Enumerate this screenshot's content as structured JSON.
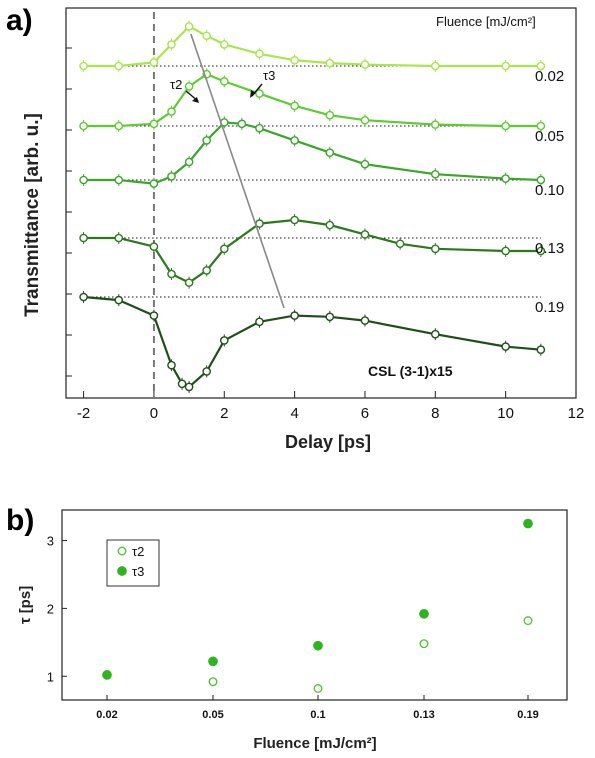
{
  "chart_data": [
    {
      "panel": "a)",
      "type": "line",
      "xlabel": "Delay [ps]",
      "ylabel": "Transmittance [arb. u.]",
      "xlim": [
        -2.5,
        12
      ],
      "xticks": [
        "-2",
        "0",
        "2",
        "4",
        "6",
        "8",
        "10",
        "12"
      ],
      "legend_title": "Fluence [mJ/cm²]",
      "annotation": "CSL (3-1)x15",
      "tau_labels": [
        "τ2",
        "τ3"
      ],
      "series": [
        {
          "name": "0.02",
          "color": "#a8e64a",
          "x": [
            -2,
            -1,
            0,
            0.5,
            1,
            1.5,
            2,
            3,
            4,
            5,
            6,
            8,
            10,
            11
          ],
          "y": [
            0.0,
            0.0,
            0.05,
            0.3,
            0.55,
            0.42,
            0.3,
            0.17,
            0.08,
            0.04,
            0.02,
            0.0,
            0.0,
            0.0
          ]
        },
        {
          "name": "0.05",
          "color": "#5ecb32",
          "x": [
            -2,
            -1,
            0,
            0.5,
            1,
            1.5,
            2,
            3,
            4,
            5,
            6,
            8,
            10,
            11
          ],
          "y": [
            0.0,
            0.0,
            0.03,
            0.2,
            0.55,
            0.72,
            0.62,
            0.45,
            0.28,
            0.15,
            0.08,
            0.02,
            0.0,
            0.0
          ]
        },
        {
          "name": "0.10",
          "color": "#3aa62a",
          "x": [
            -2,
            -1,
            0,
            0.5,
            1,
            1.5,
            2,
            2.5,
            3,
            4,
            5,
            6,
            8,
            10,
            11
          ],
          "y": [
            0.0,
            0.0,
            -0.05,
            0.05,
            0.25,
            0.55,
            0.8,
            0.78,
            0.72,
            0.55,
            0.38,
            0.22,
            0.08,
            0.02,
            0.0
          ]
        },
        {
          "name": "0.13",
          "color": "#2a7a1c",
          "x": [
            -2,
            -1,
            0,
            0.5,
            1,
            1.5,
            2,
            3,
            4,
            5,
            6,
            7,
            8,
            10,
            11
          ],
          "y": [
            0.0,
            0.0,
            -0.12,
            -0.5,
            -0.62,
            -0.45,
            -0.15,
            0.2,
            0.25,
            0.18,
            0.05,
            -0.08,
            -0.15,
            -0.18,
            -0.18
          ]
        },
        {
          "name": "0.19",
          "color": "#1f4f18",
          "x": [
            -2,
            -1,
            0,
            0.5,
            0.8,
            1,
            1.5,
            2,
            3,
            4,
            5,
            6,
            8,
            10,
            11
          ],
          "y": [
            0.0,
            -0.05,
            -0.3,
            -1.1,
            -1.4,
            -1.45,
            -1.2,
            -0.7,
            -0.4,
            -0.3,
            -0.32,
            -0.38,
            -0.6,
            -0.8,
            -0.85
          ]
        }
      ]
    },
    {
      "panel": "b)",
      "type": "scatter",
      "xlabel": "Fluence [mJ/cm²]",
      "ylabel": "τ [ps]",
      "categories": [
        "0.02",
        "0.05",
        "0.1",
        "0.13",
        "0.19"
      ],
      "ylim": [
        0.65,
        3.45
      ],
      "yticks": [
        "1",
        "2",
        "3"
      ],
      "legend": "top-left",
      "series": [
        {
          "name": "τ2",
          "style": "open",
          "color": "#4fc12e",
          "values": [
            1.02,
            0.92,
            0.82,
            1.48,
            1.82
          ]
        },
        {
          "name": "τ3",
          "style": "filled",
          "color": "#2eb41e",
          "values": [
            1.02,
            1.22,
            1.45,
            1.92,
            3.25
          ]
        }
      ]
    }
  ]
}
